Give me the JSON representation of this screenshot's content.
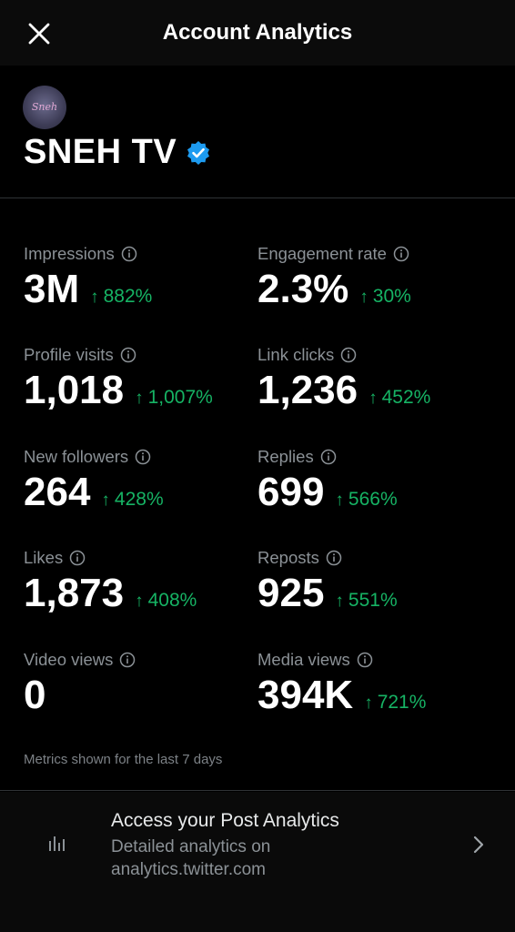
{
  "header": {
    "title": "Account Analytics"
  },
  "account": {
    "name": "SNEH TV",
    "verified": true,
    "avatar_text": "Sneh"
  },
  "metrics": [
    {
      "label": "Impressions",
      "value": "3M",
      "change": "882%"
    },
    {
      "label": "Engagement rate",
      "value": "2.3%",
      "change": "30%"
    },
    {
      "label": "Profile visits",
      "value": "1,018",
      "change": "1,007%"
    },
    {
      "label": "Link clicks",
      "value": "1,236",
      "change": "452%"
    },
    {
      "label": "New followers",
      "value": "264",
      "change": "428%"
    },
    {
      "label": "Replies",
      "value": "699",
      "change": "566%"
    },
    {
      "label": "Likes",
      "value": "1,873",
      "change": "408%"
    },
    {
      "label": "Reposts",
      "value": "925",
      "change": "551%"
    },
    {
      "label": "Video views",
      "value": "0",
      "change": ""
    },
    {
      "label": "Media views",
      "value": "394K",
      "change": "721%"
    }
  ],
  "footnote": "Metrics shown for the last 7 days",
  "post_analytics": {
    "title": "Access your Post Analytics",
    "description": "Detailed analytics on analytics.twitter.com"
  },
  "colors": {
    "positive": "#16b364",
    "verified": "#1d9bf0",
    "background": "#000000"
  }
}
